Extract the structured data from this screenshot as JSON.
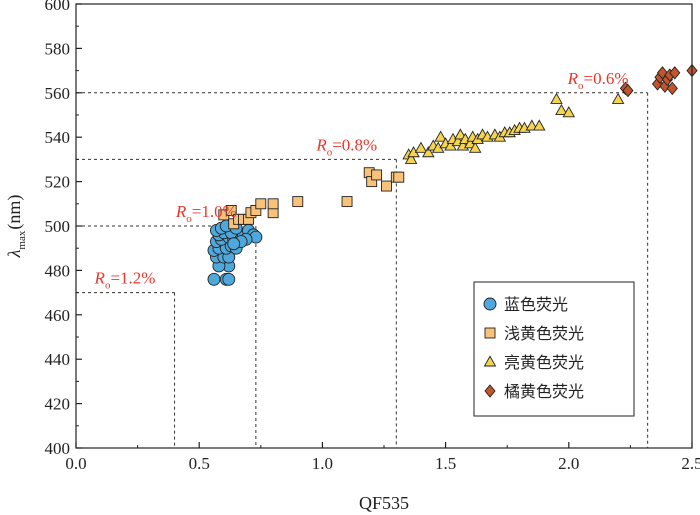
{
  "chart_data": {
    "type": "scatter",
    "title": "",
    "xlabel": "QF535",
    "ylabel": {
      "base": "λ",
      "sub": "max",
      "rest": "(nm)"
    },
    "xlim": [
      0.0,
      2.5
    ],
    "ylim": [
      400,
      600
    ],
    "xticks": [
      0.0,
      0.5,
      1.0,
      1.5,
      2.0,
      2.5
    ],
    "xtick_labels": [
      "0.0",
      "0.5",
      "1.0",
      "1.5",
      "2.0",
      "2.5"
    ],
    "yticks": [
      400,
      420,
      440,
      460,
      480,
      500,
      520,
      540,
      560,
      580,
      600
    ],
    "ytick_labels": [
      "400",
      "420",
      "440",
      "460",
      "480",
      "500",
      "520",
      "540",
      "560",
      "580",
      "600"
    ],
    "grid": false,
    "legend_position": "bottom-right",
    "colors": {
      "blue": "#4fa8dc",
      "light_yellow": "#f8c27a",
      "bright_yellow": "#f5d44f",
      "orange": "#c0562d",
      "annotation": "#e8382e",
      "guide": "#333333"
    },
    "series": [
      {
        "name": "蓝色荧光",
        "marker": "circle",
        "color": "#4fa8dc",
        "points": [
          [
            0.56,
            476
          ],
          [
            0.61,
            476
          ],
          [
            0.62,
            476
          ],
          [
            0.62,
            482
          ],
          [
            0.58,
            482
          ],
          [
            0.57,
            486
          ],
          [
            0.6,
            486
          ],
          [
            0.62,
            486
          ],
          [
            0.56,
            489
          ],
          [
            0.58,
            490
          ],
          [
            0.61,
            490
          ],
          [
            0.63,
            491
          ],
          [
            0.65,
            490
          ],
          [
            0.57,
            493
          ],
          [
            0.59,
            494
          ],
          [
            0.62,
            495
          ],
          [
            0.64,
            494
          ],
          [
            0.66,
            495
          ],
          [
            0.68,
            496
          ],
          [
            0.58,
            496
          ],
          [
            0.6,
            497
          ],
          [
            0.63,
            497
          ],
          [
            0.57,
            498
          ],
          [
            0.59,
            499
          ],
          [
            0.61,
            500
          ],
          [
            0.65,
            499
          ],
          [
            0.7,
            498
          ],
          [
            0.72,
            496
          ],
          [
            0.73,
            495
          ],
          [
            0.69,
            494
          ],
          [
            0.67,
            493
          ],
          [
            0.64,
            492
          ]
        ]
      },
      {
        "name": "浅黄色荧光",
        "marker": "square",
        "color": "#f8c27a",
        "points": [
          [
            0.6,
            505
          ],
          [
            0.63,
            507
          ],
          [
            0.64,
            501
          ],
          [
            0.66,
            503
          ],
          [
            0.68,
            503
          ],
          [
            0.7,
            503
          ],
          [
            0.71,
            506
          ],
          [
            0.73,
            507
          ],
          [
            0.75,
            510
          ],
          [
            0.8,
            506
          ],
          [
            0.8,
            510
          ],
          [
            0.9,
            511
          ],
          [
            1.1,
            511
          ],
          [
            1.19,
            524
          ],
          [
            1.2,
            520
          ],
          [
            1.22,
            523
          ],
          [
            1.26,
            518
          ],
          [
            1.3,
            522
          ],
          [
            1.31,
            522
          ]
        ]
      },
      {
        "name": "亮黄色荧光",
        "marker": "triangle",
        "color": "#f5d44f",
        "points": [
          [
            1.35,
            532
          ],
          [
            1.36,
            530
          ],
          [
            1.37,
            533
          ],
          [
            1.4,
            535
          ],
          [
            1.43,
            533
          ],
          [
            1.45,
            536
          ],
          [
            1.47,
            535
          ],
          [
            1.48,
            540
          ],
          [
            1.5,
            537
          ],
          [
            1.52,
            536
          ],
          [
            1.53,
            539
          ],
          [
            1.55,
            538
          ],
          [
            1.56,
            541
          ],
          [
            1.57,
            536
          ],
          [
            1.58,
            539
          ],
          [
            1.6,
            537
          ],
          [
            1.61,
            540
          ],
          [
            1.62,
            535
          ],
          [
            1.63,
            539
          ],
          [
            1.65,
            541
          ],
          [
            1.67,
            540
          ],
          [
            1.7,
            541
          ],
          [
            1.72,
            540
          ],
          [
            1.74,
            542
          ],
          [
            1.76,
            542
          ],
          [
            1.78,
            543
          ],
          [
            1.8,
            544
          ],
          [
            1.82,
            544
          ],
          [
            1.85,
            545
          ],
          [
            1.88,
            545
          ],
          [
            1.95,
            557
          ],
          [
            1.97,
            552
          ],
          [
            2.0,
            551
          ],
          [
            2.2,
            557
          ]
        ]
      },
      {
        "name": "橘黄色荧光",
        "marker": "diamond",
        "color": "#c0562d",
        "points": [
          [
            2.23,
            562
          ],
          [
            2.24,
            561
          ],
          [
            2.36,
            564
          ],
          [
            2.37,
            567
          ],
          [
            2.38,
            569
          ],
          [
            2.39,
            563
          ],
          [
            2.4,
            566
          ],
          [
            2.41,
            568
          ],
          [
            2.42,
            562
          ],
          [
            2.43,
            569
          ],
          [
            2.5,
            570
          ]
        ]
      }
    ],
    "guides": [
      {
        "x": 0.4,
        "y": 470,
        "label_sub": "o",
        "label_value": "=1.2%"
      },
      {
        "x": 0.73,
        "y": 500,
        "label_sub": "o",
        "label_value": "=1.0%"
      },
      {
        "x": 1.3,
        "y": 530,
        "label_sub": "o",
        "label_value": "=0.8%"
      },
      {
        "x": 2.32,
        "y": 560,
        "label_sub": "o",
        "label_value": "=0.6%"
      }
    ],
    "annotation_symbol": "R"
  }
}
